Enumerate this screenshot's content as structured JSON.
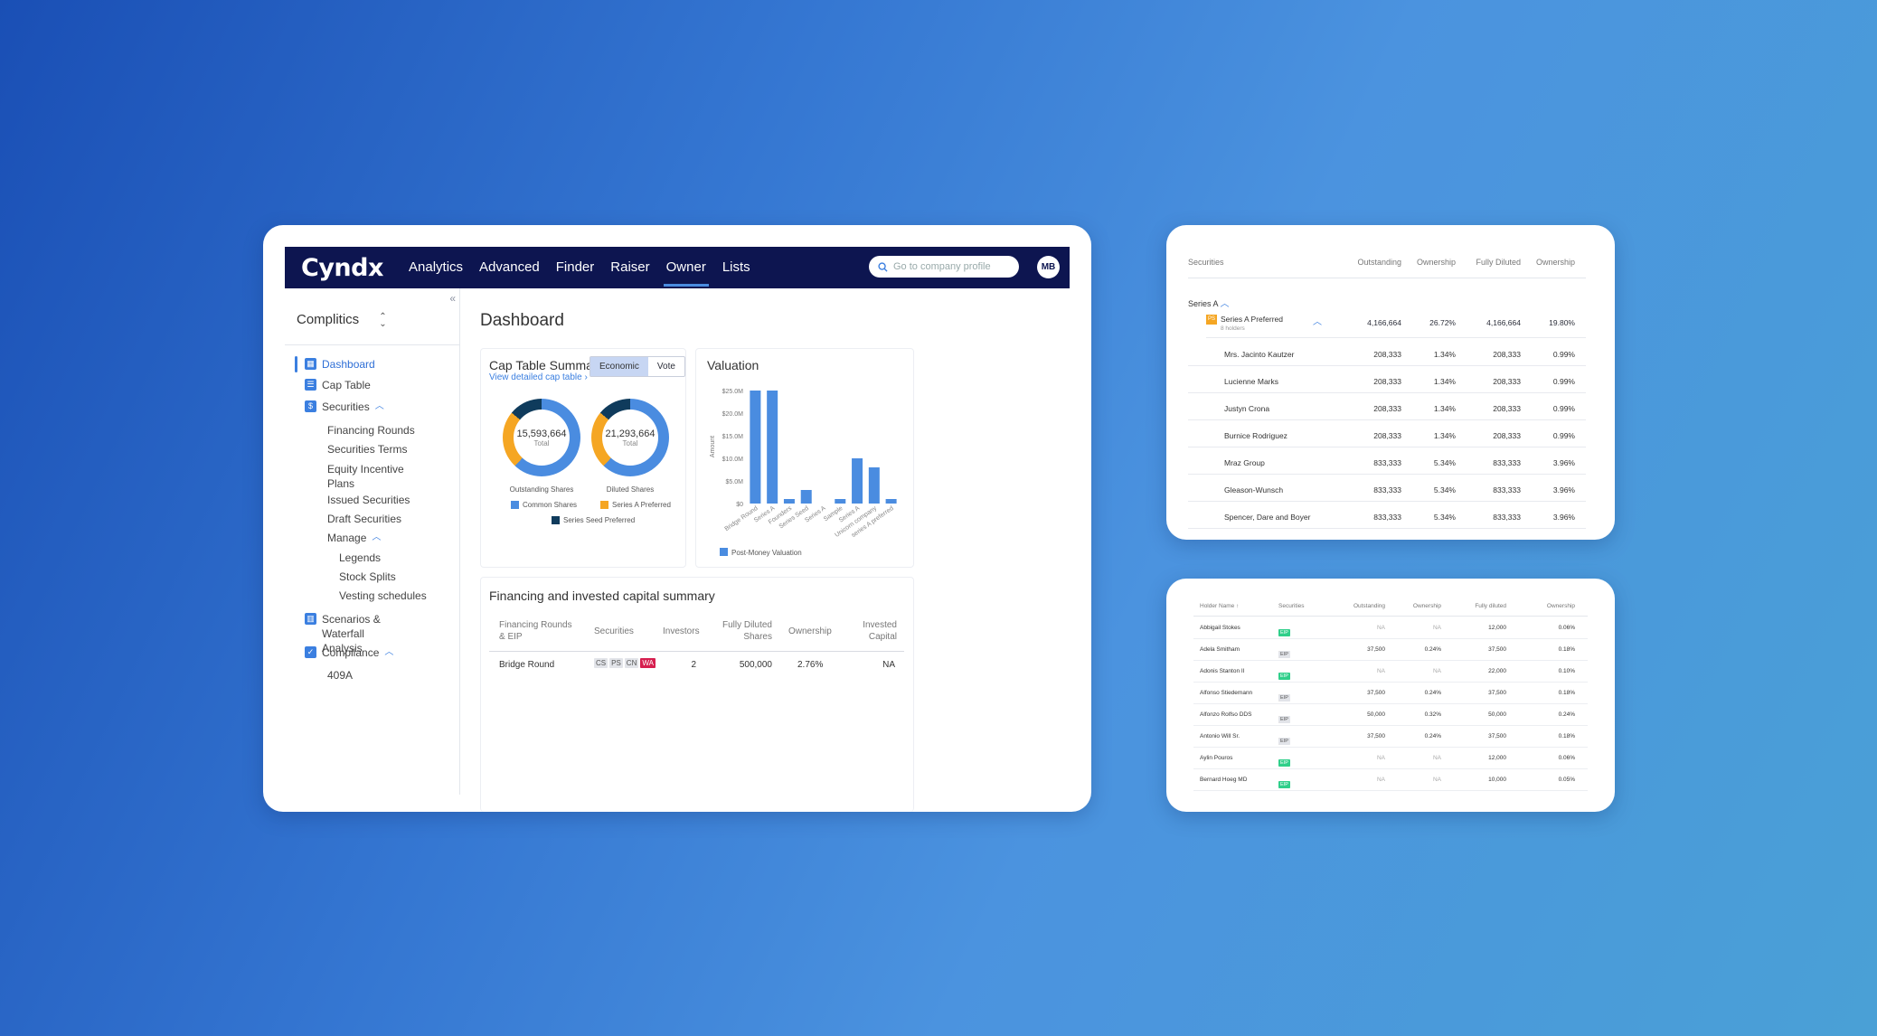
{
  "app": {
    "logo": "Cyndx",
    "nav": [
      "Analytics",
      "Advanced",
      "Finder",
      "Raiser",
      "Owner",
      "Lists"
    ],
    "active_nav": "Owner",
    "search_placeholder": "Go to company profile",
    "avatar": "MB"
  },
  "sidebar": {
    "company": "Complitics",
    "company_chevron": "⌃⌄",
    "items": [
      {
        "label": "Dashboard",
        "icon": "dashboard-icon"
      },
      {
        "label": "Cap Table",
        "icon": "table-icon"
      },
      {
        "label": "Securities",
        "icon": "dollar-icon"
      },
      {
        "label": "Financing Rounds"
      },
      {
        "label": "Securities Terms"
      },
      {
        "label": "Equity Incentive Plans"
      },
      {
        "label": "Issued Securities"
      },
      {
        "label": "Draft Securities"
      },
      {
        "label": "Manage"
      },
      {
        "label": "Legends"
      },
      {
        "label": "Stock Splits"
      },
      {
        "label": "Vesting schedules"
      },
      {
        "label": "Scenarios & Waterfall Analysis",
        "icon": "chart-icon"
      },
      {
        "label": "Compliance",
        "icon": "compliance-icon"
      },
      {
        "label": "409A"
      }
    ]
  },
  "dashboard": {
    "title": "Dashboard",
    "cap_table": {
      "title": "Cap Table Summary",
      "toggle": [
        "Economic",
        "Vote"
      ],
      "link": "View detailed cap table",
      "outstanding": {
        "value": "15,593,664",
        "sub": "Total",
        "label": "Outstanding Shares"
      },
      "diluted": {
        "value": "21,293,664",
        "sub": "Total",
        "label": "Diluted Shares"
      },
      "legend": [
        "Common Shares",
        "Series A Preferred",
        "Series Seed Preferred"
      ]
    },
    "valuation": {
      "title": "Valuation"
    },
    "financing": {
      "title": "Financing and invested capital summary",
      "headers": [
        "Financing Rounds & EIP",
        "Securities",
        "Investors",
        "Fully Diluted Shares",
        "Ownership",
        "Invested Capital"
      ],
      "row": {
        "name": "Bridge Round",
        "badges": [
          "CS",
          "PS",
          "CN",
          "WA"
        ],
        "investors": "2",
        "fd": "500,000",
        "own": "2.76%",
        "cap": "NA"
      }
    }
  },
  "chart_data": {
    "type": "bar",
    "categories": [
      "Bridge Round",
      "Series A",
      "Founders",
      "Series Seed",
      "Series A",
      "Sample",
      "Series A",
      "Unicorn company",
      "series A preferred"
    ],
    "series": [
      {
        "name": "Post-Money Valuation",
        "values": [
          25,
          25,
          1,
          3,
          0,
          1,
          10,
          8,
          1
        ]
      }
    ],
    "ylabel": "Amount",
    "yticks": [
      "$0",
      "$5.0M",
      "$10.0M",
      "$15.0M",
      "$20.0M",
      "$25.0M"
    ],
    "ylim": [
      0,
      25
    ],
    "color": "#4a8ce0"
  },
  "panel1": {
    "headers": [
      "Securities",
      "Outstanding",
      "Ownership",
      "Fully Diluted",
      "Ownership"
    ],
    "group": "Series A",
    "sub": {
      "name": "Series A Preferred",
      "holders": "8 holders",
      "badge": "PS",
      "out": "4,166,664",
      "own": "26.72%",
      "fd": "4,166,664",
      "fdown": "19.80%"
    },
    "rows": [
      [
        "Mrs. Jacinto Kautzer",
        "208,333",
        "1.34%",
        "208,333",
        "0.99%"
      ],
      [
        "Lucienne Marks",
        "208,333",
        "1.34%",
        "208,333",
        "0.99%"
      ],
      [
        "Justyn Crona",
        "208,333",
        "1.34%",
        "208,333",
        "0.99%"
      ],
      [
        "Burnice Rodriguez",
        "208,333",
        "1.34%",
        "208,333",
        "0.99%"
      ],
      [
        "Mraz Group",
        "833,333",
        "5.34%",
        "833,333",
        "3.96%"
      ],
      [
        "Gleason-Wunsch",
        "833,333",
        "5.34%",
        "833,333",
        "3.96%"
      ],
      [
        "Spencer, Dare and Boyer",
        "833,333",
        "5.34%",
        "833,333",
        "3.96%"
      ]
    ]
  },
  "panel2": {
    "headers": [
      "Holder Name ↑",
      "Securities",
      "Outstanding",
      "Ownership",
      "Fully diluted",
      "Ownership"
    ],
    "rows": [
      {
        "name": "Abbigail Stokes",
        "ps_on": false,
        "out": "NA",
        "own": "NA",
        "fd": "12,000",
        "fdown": "0.06%"
      },
      {
        "name": "Adela Smitham",
        "ps_on": true,
        "out": "37,500",
        "own": "0.24%",
        "fd": "37,500",
        "fdown": "0.18%"
      },
      {
        "name": "Adonis Stanton II",
        "ps_on": false,
        "out": "NA",
        "own": "NA",
        "fd": "22,000",
        "fdown": "0.10%"
      },
      {
        "name": "Alfonso Stiedemann",
        "ps_on": true,
        "out": "37,500",
        "own": "0.24%",
        "fd": "37,500",
        "fdown": "0.18%"
      },
      {
        "name": "Alfonzo Rolfso DDS",
        "ps_on": true,
        "out": "50,000",
        "own": "0.32%",
        "fd": "50,000",
        "fdown": "0.24%"
      },
      {
        "name": "Antonio Will Sr.",
        "ps_on": true,
        "out": "37,500",
        "own": "0.24%",
        "fd": "37,500",
        "fdown": "0.18%"
      },
      {
        "name": "Aylin Pouros",
        "ps_on": false,
        "out": "NA",
        "own": "NA",
        "fd": "12,000",
        "fdown": "0.06%"
      },
      {
        "name": "Bernard Hoeg MD",
        "ps_on": false,
        "out": "NA",
        "own": "NA",
        "fd": "10,000",
        "fdown": "0.05%"
      }
    ],
    "badges": [
      "CS",
      "PS",
      "WA",
      "EIP"
    ]
  }
}
